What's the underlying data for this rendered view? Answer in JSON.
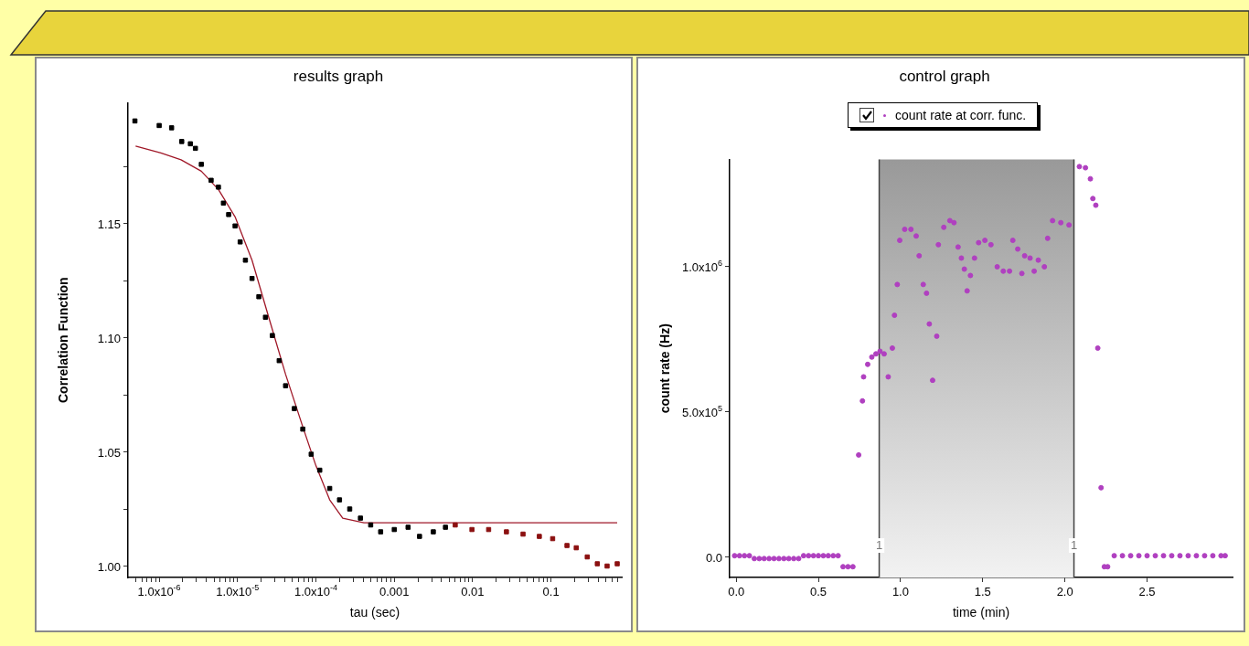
{
  "chart_data": [
    {
      "type": "scatter",
      "title": "results graph",
      "xlabel": "tau (sec)",
      "ylabel": "Correlation Function",
      "log": "x",
      "grid": false,
      "legend": false,
      "xlim": [
        4e-07,
        0.8
      ],
      "ylim": [
        0.995,
        1.203
      ],
      "xticks": [
        {
          "value": 5e-07,
          "label": null
        },
        {
          "value": 6e-07,
          "label": null
        },
        {
          "value": 7e-07,
          "label": null
        },
        {
          "value": 8e-07,
          "label": null
        },
        {
          "value": 9e-07,
          "label": null
        },
        {
          "value": 1e-06,
          "label": "1.0x10$^{-6}$"
        },
        {
          "value": 2e-06,
          "label": null
        },
        {
          "value": 3e-06,
          "label": null
        },
        {
          "value": 4e-06,
          "label": null
        },
        {
          "value": 5e-06,
          "label": null
        },
        {
          "value": 6e-06,
          "label": null
        },
        {
          "value": 7e-06,
          "label": null
        },
        {
          "value": 8e-06,
          "label": null
        },
        {
          "value": 9e-06,
          "label": null
        },
        {
          "value": 1e-05,
          "label": "1.0x10$^{-5}$"
        },
        {
          "value": 2e-05,
          "label": null
        },
        {
          "value": 3e-05,
          "label": null
        },
        {
          "value": 4e-05,
          "label": null
        },
        {
          "value": 5e-05,
          "label": null
        },
        {
          "value": 6e-05,
          "label": null
        },
        {
          "value": 7e-05,
          "label": null
        },
        {
          "value": 8e-05,
          "label": null
        },
        {
          "value": 9e-05,
          "label": null
        },
        {
          "value": 0.0001,
          "label": "1.0x10$^{-4}$"
        },
        {
          "value": 0.0002,
          "label": null
        },
        {
          "value": 0.0003,
          "label": null
        },
        {
          "value": 0.0004,
          "label": null
        },
        {
          "value": 0.0005,
          "label": null
        },
        {
          "value": 0.0006,
          "label": null
        },
        {
          "value": 0.0007,
          "label": null
        },
        {
          "value": 0.0008,
          "label": null
        },
        {
          "value": 0.0009,
          "label": null
        },
        0.001,
        {
          "value": 0.002,
          "label": null
        },
        {
          "value": 0.003,
          "label": null
        },
        {
          "value": 0.004,
          "label": null
        },
        {
          "value": 0.005,
          "label": null
        },
        {
          "value": 0.006,
          "label": null
        },
        {
          "value": 0.007,
          "label": null
        },
        {
          "value": 0.008,
          "label": null
        },
        {
          "value": 0.009,
          "label": null
        },
        0.01,
        {
          "value": 0.02,
          "label": null
        },
        {
          "value": 0.03,
          "label": null
        },
        {
          "value": 0.04,
          "label": null
        },
        {
          "value": 0.05,
          "label": null
        },
        {
          "value": 0.06,
          "label": null
        },
        {
          "value": 0.07,
          "label": null
        },
        {
          "value": 0.08,
          "label": null
        },
        {
          "value": 0.09,
          "label": null
        },
        0.1,
        {
          "value": 0.2,
          "label": null
        },
        {
          "value": 0.3,
          "label": null
        },
        {
          "value": 0.4,
          "label": null
        },
        {
          "value": 0.5,
          "label": null
        },
        {
          "value": 0.6,
          "label": null
        },
        {
          "value": 0.7,
          "label": null
        }
      ],
      "yticks": [
        {
          "value": 1,
          "label": "1.00"
        },
        {
          "value": 1.025,
          "label": null
        },
        {
          "value": 1.05,
          "label": "1.05"
        },
        {
          "value": 1.075,
          "label": null
        },
        {
          "value": 1.1,
          "label": "1.10"
        },
        {
          "value": 1.125,
          "label": null
        },
        {
          "value": 1.15,
          "label": "1.15"
        },
        {
          "value": 1.175,
          "label": null
        }
      ],
      "series": [
        {
          "type": "scatter",
          "marker": "square",
          "color": "#000000",
          "x": [
            4.9e-07,
            1e-06,
            1.44e-06,
            1.94e-06,
            2.5e-06,
            2.9e-06,
            3.45e-06,
            4.6e-06,
            5.7e-06,
            6.6e-06,
            7.7e-06,
            9.3e-06,
            1.08e-05,
            1.26e-05,
            1.53e-05,
            1.87e-05,
            2.27e-05,
            2.78e-05,
            3.4e-05,
            4.1e-05,
            5.3e-05,
            6.8e-05,
            8.7e-05,
            0.000112,
            0.00015,
            0.0002,
            0.00027,
            0.00037,
            0.0005,
            0.00067,
            0.001,
            0.0015,
            0.0021,
            0.00315,
            0.0045
          ],
          "values": [
            1.195,
            1.193,
            1.192,
            1.186,
            1.185,
            1.183,
            1.176,
            1.169,
            1.166,
            1.159,
            1.154,
            1.149,
            1.142,
            1.134,
            1.126,
            1.118,
            1.109,
            1.101,
            1.09,
            1.079,
            1.069,
            1.06,
            1.049,
            1.042,
            1.034,
            1.029,
            1.025,
            1.021,
            1.018,
            1.015,
            1.016,
            1.017,
            1.013,
            1.015,
            1.017
          ]
        },
        {
          "type": "scatter",
          "marker": "square",
          "color": "#8b1010",
          "x": [
            0.006,
            0.0098,
            0.016,
            0.027,
            0.044,
            0.071,
            0.105,
            0.16,
            0.21,
            0.29,
            0.39,
            0.52,
            0.7
          ],
          "values": [
            1.018,
            1.016,
            1.016,
            1.015,
            1.014,
            1.013,
            1.012,
            1.009,
            1.008,
            1.004,
            1.001,
            1.0,
            1.001
          ]
        },
        {
          "type": "line",
          "marker": "none",
          "color": "#a01828",
          "x": [
            5e-07,
            1.05e-06,
            1.9e-06,
            3.45e-06,
            5.7e-06,
            9.3e-06,
            1.53e-05,
            2.5e-05,
            4.1e-05,
            6.8e-05,
            0.0001,
            0.00015,
            0.00022,
            0.00041,
            0.00135,
            0.7
          ],
          "values": [
            1.184,
            1.181,
            1.178,
            1.173,
            1.165,
            1.153,
            1.134,
            1.109,
            1.084,
            1.061,
            1.044,
            1.029,
            1.021,
            1.019,
            1.019,
            1.019
          ]
        }
      ]
    },
    {
      "type": "scatter",
      "title": "control graph",
      "xlabel": "time (min)",
      "ylabel": "count rate (Hz)",
      "grid": false,
      "legend": "top",
      "xlim": [
        -0.04,
        3.02
      ],
      "ylim": [
        -70000,
        1370000
      ],
      "xticks": [
        {
          "value": 0,
          "label": "0.0"
        },
        {
          "value": 0.5,
          "label": "0.5"
        },
        {
          "value": 1,
          "label": "1.0"
        },
        {
          "value": 1.5,
          "label": "1.5"
        },
        {
          "value": 2,
          "label": "2.0"
        },
        {
          "value": 2.5,
          "label": "2.5"
        }
      ],
      "yticks": [
        {
          "value": 0,
          "label": "0.0"
        },
        {
          "value": 500000,
          "label": "5.0x10$^{5}$"
        },
        {
          "value": 1000000,
          "label": "1.0x10$^{6}$"
        }
      ],
      "bands": [
        {
          "axis": "x",
          "from": 0.87,
          "to": 2.055,
          "color": "#999999"
        }
      ],
      "ref_lines": [
        {
          "axis": "x",
          "value": 0.87,
          "color": "#444444"
        },
        {
          "axis": "x",
          "value": 2.055,
          "color": "#444444"
        }
      ],
      "annotations": [
        {
          "text": "1",
          "x": 0.87,
          "y": 40000
        },
        {
          "text": "1",
          "x": 2.055,
          "y": 40000
        }
      ],
      "series": [
        {
          "type": "scatter",
          "name": "count rate at corr. func.",
          "marker": "circle",
          "color": "#b040c0",
          "x": [
            -0.01,
            0.02,
            0.05,
            0.08,
            0.11,
            0.14,
            0.17,
            0.2,
            0.23,
            0.26,
            0.29,
            0.32,
            0.35,
            0.38,
            0.41,
            0.44,
            0.47,
            0.5,
            0.53,
            0.56,
            0.59,
            0.62,
            0.65,
            0.68,
            0.71,
            0.745,
            0.768,
            0.775,
            0.8,
            0.825,
            0.85,
            0.875,
            0.9,
            0.925,
            0.95,
            0.963,
            0.98,
            0.995,
            1.025,
            1.063,
            1.095,
            1.113,
            1.138,
            1.158,
            1.175,
            1.195,
            1.22,
            1.23,
            1.263,
            1.3,
            1.325,
            1.35,
            1.37,
            1.388,
            1.405,
            1.425,
            1.45,
            1.475,
            1.513,
            1.55,
            1.588,
            1.625,
            1.663,
            1.683,
            1.713,
            1.738,
            1.755,
            1.788,
            1.813,
            1.838,
            1.875,
            1.895,
            1.925,
            1.975,
            2.025,
            2.088,
            2.125,
            2.155,
            2.17,
            2.188,
            2.2,
            2.22,
            2.24,
            2.26,
            2.3,
            2.35,
            2.4,
            2.45,
            2.5,
            2.55,
            2.6,
            2.65,
            2.7,
            2.75,
            2.8,
            2.85,
            2.9,
            2.95,
            2.975
          ],
          "values": [
            5000,
            5000,
            5000,
            5000,
            -5000,
            -5000,
            -5000,
            -5000,
            -5000,
            -5000,
            -5000,
            -5000,
            -5000,
            -5000,
            5000,
            5000,
            5000,
            5000,
            5000,
            5000,
            5000,
            5000,
            -33000,
            -33000,
            -33000,
            352000,
            538000,
            621000,
            664000,
            689000,
            700000,
            709000,
            700000,
            621000,
            720000,
            833000,
            939000,
            1091000,
            1129000,
            1129000,
            1106000,
            1038000,
            939000,
            909000,
            803000,
            609000,
            761000,
            1076000,
            1136000,
            1159000,
            1152000,
            1068000,
            1030000,
            992000,
            917000,
            970000,
            1030000,
            1083000,
            1091000,
            1076000,
            1000000,
            985000,
            985000,
            1091000,
            1061000,
            977000,
            1038000,
            1030000,
            985000,
            1023000,
            1000000,
            1098000,
            1159000,
            1152000,
            1144000,
            1345000,
            1341000,
            1303000,
            1235000,
            1212000,
            720000,
            239000,
            -33000,
            -33000,
            5000,
            5000,
            5000,
            5000,
            5000,
            5000,
            5000,
            5000,
            5000,
            5000,
            5000,
            5000,
            5000,
            5000,
            5000
          ]
        }
      ]
    }
  ]
}
